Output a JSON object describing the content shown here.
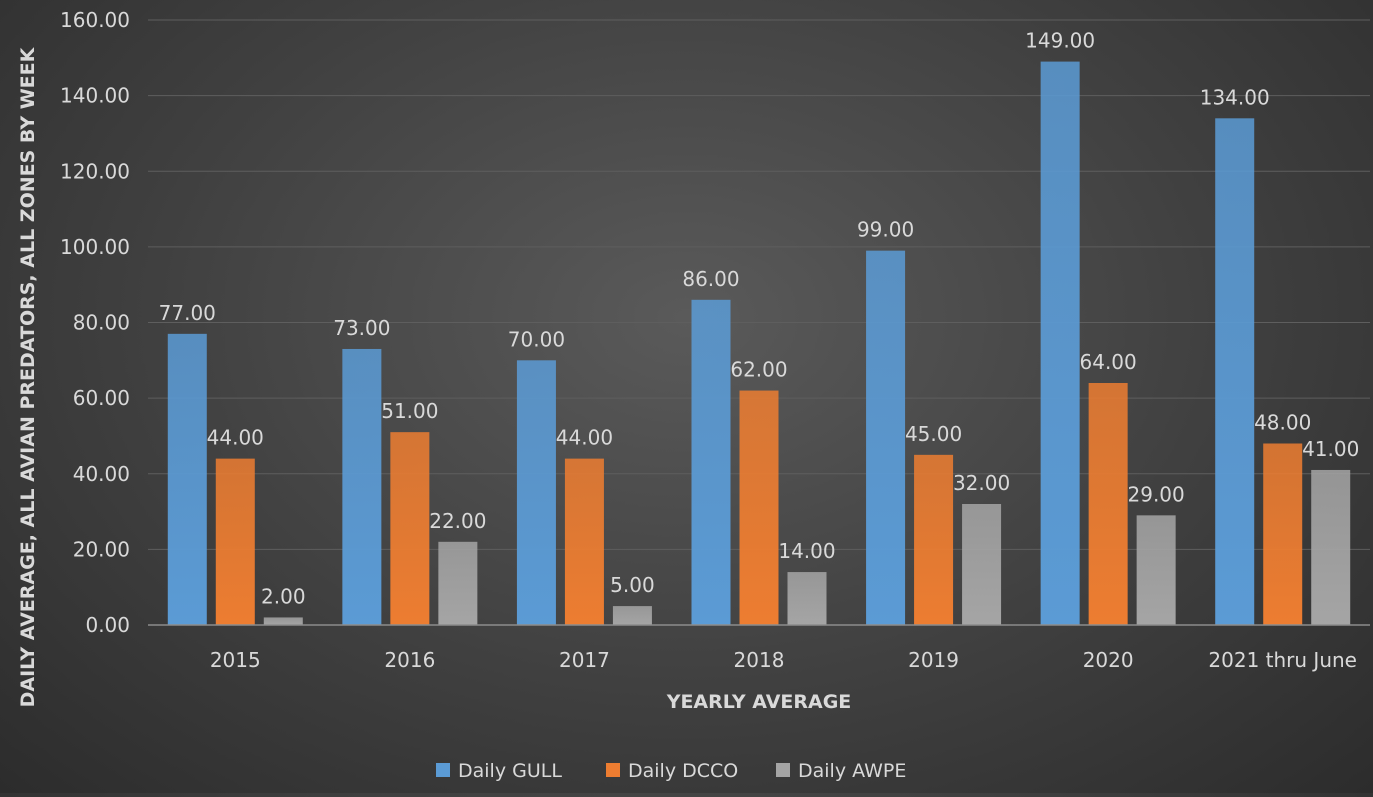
{
  "colors": {
    "gull": "#5b9bd5",
    "dcco": "#ed7d31",
    "awpe": "#a5a5a5",
    "grid": "#5e5e5e",
    "axis": "#8c8c8c",
    "text": "#d9d9d9"
  },
  "chart_data": {
    "type": "bar",
    "title": "",
    "xlabel": "YEARLY AVERAGE",
    "ylabel": "DAILY AVERAGE, ALL AVIAN PREDATORS, ALL ZONES BY WEEK",
    "categories": [
      "2015",
      "2016",
      "2017",
      "2018",
      "2019",
      "2020",
      "2021 thru June"
    ],
    "series": [
      {
        "name": "Daily GULL",
        "color": "#5b9bd5",
        "values": [
          77,
          73,
          70,
          86,
          99,
          149,
          134
        ],
        "labels": [
          "77.00",
          "73.00",
          "70.00",
          "86.00",
          "99.00",
          "149.00",
          "134.00"
        ]
      },
      {
        "name": "Daily DCCO",
        "color": "#ed7d31",
        "values": [
          44,
          51,
          44,
          62,
          45,
          64,
          48
        ],
        "labels": [
          "44.00",
          "51.00",
          "44.00",
          "62.00",
          "45.00",
          "64.00",
          "48.00"
        ]
      },
      {
        "name": "Daily AWPE",
        "color": "#a5a5a5",
        "values": [
          2,
          22,
          5,
          14,
          32,
          29,
          41
        ],
        "labels": [
          "2.00",
          "22.00",
          "5.00",
          "14.00",
          "32.00",
          "29.00",
          "41.00"
        ]
      }
    ],
    "ylim": [
      0,
      160
    ],
    "yticks": [
      0,
      20,
      40,
      60,
      80,
      100,
      120,
      140,
      160
    ],
    "ytick_labels": [
      "0.00",
      "20.00",
      "40.00",
      "60.00",
      "80.00",
      "100.00",
      "120.00",
      "140.00",
      "160.00"
    ],
    "grid": true,
    "legend_position": "bottom"
  }
}
